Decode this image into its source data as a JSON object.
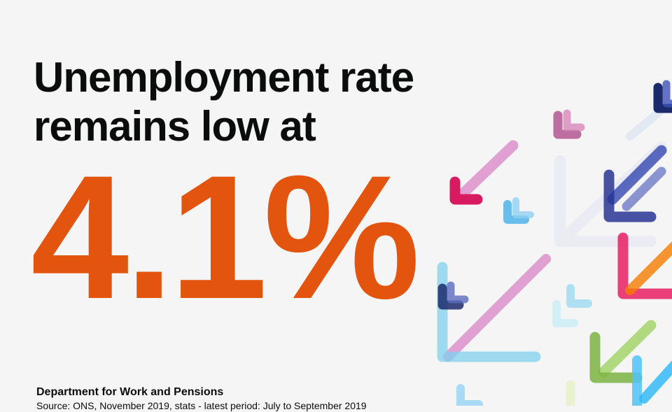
{
  "headline": {
    "line1": "Unemployment rate",
    "line2": "remains low at"
  },
  "figure": {
    "value": "4.1%"
  },
  "footer": {
    "organisation": "Department for Work and Pensions",
    "source": "Source: ONS, November 2019, stats - latest period: July to September 2019"
  },
  "decoration": {
    "icon": "down-left-arrows",
    "colors": [
      "#e8a6d4",
      "#d81b60",
      "#1c2a6b",
      "#3f51b5",
      "#f57c00",
      "#8bc34a",
      "#4fc3f7",
      "#81d4fa"
    ]
  }
}
